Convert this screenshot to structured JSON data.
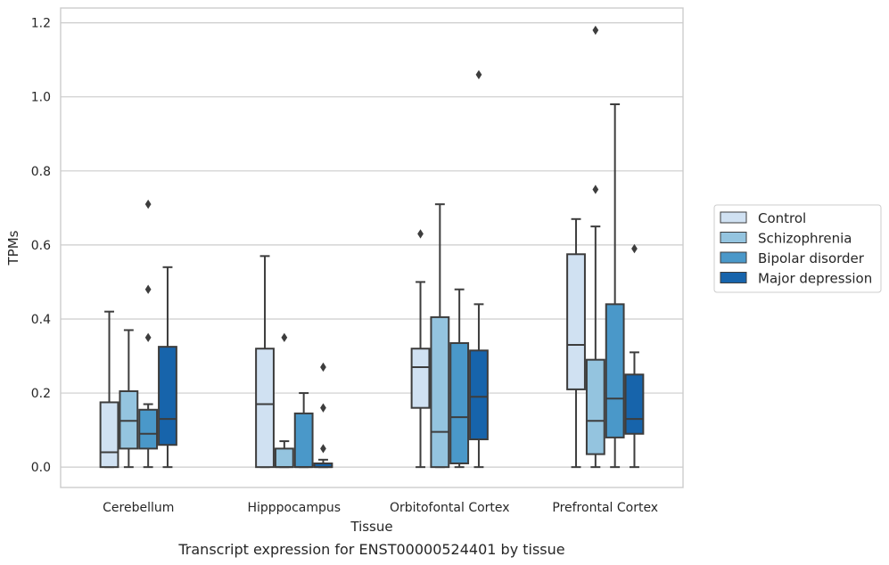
{
  "chart_data": {
    "type": "box",
    "xlabel": "Tissue",
    "ylabel": "TPMs",
    "caption": "Transcript expression for ENST00000524401 by tissue",
    "ylim": [
      -0.055,
      1.24
    ],
    "yticks": [
      0.0,
      0.2,
      0.4,
      0.6,
      0.8,
      1.0,
      1.2
    ],
    "ytick_labels": [
      "0.0",
      "0.2",
      "0.4",
      "0.6",
      "0.8",
      "1.0",
      "1.2"
    ],
    "grid": "horizontal",
    "legend_position": "right",
    "categories": [
      "Cerebellum",
      "Hipppocampus",
      "Orbitofontal Cortex",
      "Prefrontal Cortex"
    ],
    "series": [
      {
        "name": "Control",
        "color": "#d0e1f2",
        "boxes": [
          {
            "whislo": 0.0,
            "q1": 0.0,
            "med": 0.04,
            "q3": 0.175,
            "whishi": 0.42,
            "fliers": []
          },
          {
            "whislo": 0.0,
            "q1": 0.0,
            "med": 0.17,
            "q3": 0.32,
            "whishi": 0.57,
            "fliers": []
          },
          {
            "whislo": 0.0,
            "q1": 0.16,
            "med": 0.27,
            "q3": 0.32,
            "whishi": 0.5,
            "fliers": [
              0.63
            ]
          },
          {
            "whislo": 0.0,
            "q1": 0.21,
            "med": 0.33,
            "q3": 0.575,
            "whishi": 0.67,
            "fliers": []
          }
        ]
      },
      {
        "name": "Schizophrenia",
        "color": "#94c4df",
        "boxes": [
          {
            "whislo": 0.0,
            "q1": 0.05,
            "med": 0.125,
            "q3": 0.205,
            "whishi": 0.37,
            "fliers": []
          },
          {
            "whislo": 0.0,
            "q1": 0.0,
            "med": 0.0,
            "q3": 0.05,
            "whishi": 0.07,
            "fliers": [
              0.35
            ]
          },
          {
            "whislo": 0.0,
            "q1": 0.0,
            "med": 0.095,
            "q3": 0.405,
            "whishi": 0.71,
            "fliers": []
          },
          {
            "whislo": 0.0,
            "q1": 0.035,
            "med": 0.125,
            "q3": 0.29,
            "whishi": 0.65,
            "fliers": [
              0.75,
              1.18
            ]
          }
        ]
      },
      {
        "name": "Bipolar disorder",
        "color": "#4a98c9",
        "boxes": [
          {
            "whislo": 0.0,
            "q1": 0.05,
            "med": 0.09,
            "q3": 0.155,
            "whishi": 0.17,
            "fliers": [
              0.35,
              0.48,
              0.71
            ]
          },
          {
            "whislo": 0.0,
            "q1": 0.0,
            "med": 0.0,
            "q3": 0.145,
            "whishi": 0.2,
            "fliers": []
          },
          {
            "whislo": 0.0,
            "q1": 0.01,
            "med": 0.135,
            "q3": 0.335,
            "whishi": 0.48,
            "fliers": []
          },
          {
            "whislo": 0.0,
            "q1": 0.08,
            "med": 0.185,
            "q3": 0.44,
            "whishi": 0.98,
            "fliers": []
          }
        ]
      },
      {
        "name": "Major depression",
        "color": "#1764ab",
        "boxes": [
          {
            "whislo": 0.0,
            "q1": 0.06,
            "med": 0.13,
            "q3": 0.325,
            "whishi": 0.54,
            "fliers": []
          },
          {
            "whislo": 0.0,
            "q1": 0.0,
            "med": 0.0,
            "q3": 0.01,
            "whishi": 0.02,
            "fliers": [
              0.05,
              0.16,
              0.27
            ]
          },
          {
            "whislo": 0.0,
            "q1": 0.075,
            "med": 0.19,
            "q3": 0.315,
            "whishi": 0.44,
            "fliers": [
              1.06
            ]
          },
          {
            "whislo": 0.0,
            "q1": 0.09,
            "med": 0.13,
            "q3": 0.25,
            "whishi": 0.31,
            "fliers": [
              0.59
            ]
          }
        ]
      }
    ]
  }
}
